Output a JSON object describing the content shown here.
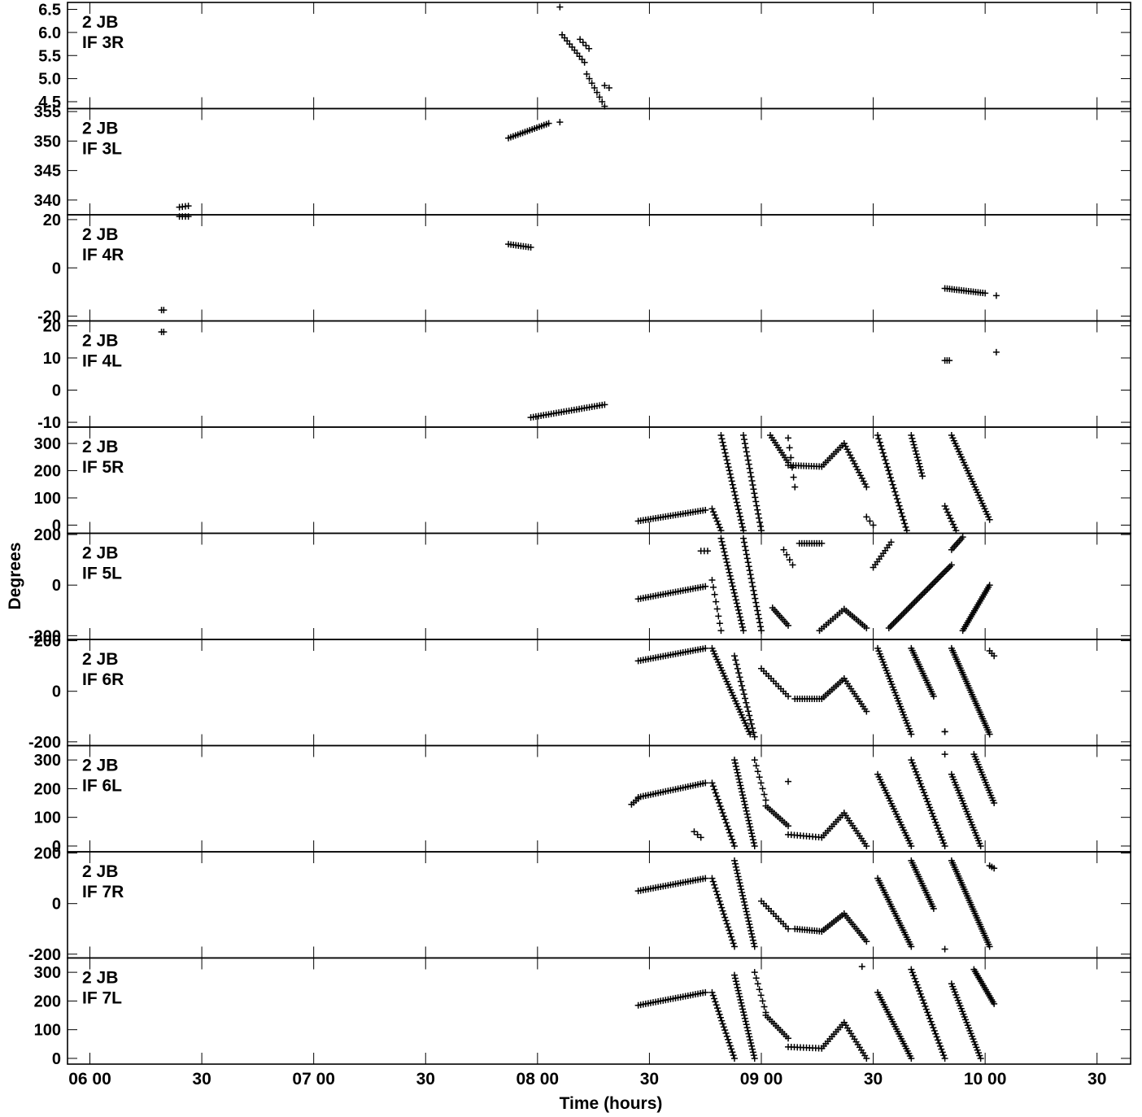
{
  "chart_data": {
    "type": "scatter",
    "marker": "+",
    "marker_color": "#000000",
    "xlabel": "Time (hours)",
    "ylabel": "Degrees",
    "xlim": [
      5.9,
      10.65
    ],
    "x_ticks": [
      {
        "value": 6.0,
        "label": "06 00"
      },
      {
        "value": 6.5,
        "label": "30"
      },
      {
        "value": 7.0,
        "label": "07 00"
      },
      {
        "value": 7.5,
        "label": "30"
      },
      {
        "value": 8.0,
        "label": "08 00"
      },
      {
        "value": 8.5,
        "label": "30"
      },
      {
        "value": 9.0,
        "label": "09 00"
      },
      {
        "value": 9.5,
        "label": "30"
      },
      {
        "value": 10.0,
        "label": "10 00"
      },
      {
        "value": 10.5,
        "label": "30"
      }
    ],
    "panels": [
      {
        "baseline": "2 JB",
        "label": "IF 3R",
        "ylim": [
          4.35,
          6.65
        ],
        "yticks": [
          {
            "v": 6.5,
            "t": "6.5"
          },
          {
            "v": 6.0,
            "t": "6.0"
          },
          {
            "v": 5.5,
            "t": "5.5"
          },
          {
            "v": 5.0,
            "t": "5.0"
          },
          {
            "v": 4.5,
            "t": "4.5"
          }
        ],
        "segments": [
          [
            8.1,
            6.55,
            8.1,
            6.55,
            1
          ],
          [
            8.11,
            5.95,
            8.21,
            5.35,
            10
          ],
          [
            8.19,
            5.85,
            8.23,
            5.65,
            4
          ],
          [
            8.22,
            5.1,
            8.3,
            4.4,
            8
          ],
          [
            8.3,
            4.85,
            8.32,
            4.8,
            2
          ]
        ]
      },
      {
        "baseline": "2 JB",
        "label": "IF 3L",
        "ylim": [
          337.5,
          355.5
        ],
        "yticks": [
          {
            "v": 355,
            "t": "355"
          },
          {
            "v": 350,
            "t": "350"
          },
          {
            "v": 345,
            "t": "345"
          },
          {
            "v": 340,
            "t": "340"
          }
        ],
        "segments": [
          [
            6.4,
            338.8,
            6.44,
            339.0,
            4
          ],
          [
            7.87,
            350.5,
            8.05,
            353.0,
            18
          ],
          [
            8.1,
            353.2,
            8.1,
            353.2,
            1
          ]
        ]
      },
      {
        "baseline": "2 JB",
        "label": "IF 4R",
        "ylim": [
          -22,
          22
        ],
        "yticks": [
          {
            "v": 20,
            "t": "20"
          },
          {
            "v": 0,
            "t": "0"
          },
          {
            "v": -20,
            "t": "-20"
          }
        ],
        "segments": [
          [
            6.4,
            21.3,
            6.44,
            21.3,
            4
          ],
          [
            6.32,
            -17.5,
            6.33,
            -17.5,
            2
          ],
          [
            7.87,
            9.8,
            7.97,
            8.5,
            10
          ],
          [
            9.82,
            -8.5,
            10.0,
            -10.5,
            18
          ],
          [
            10.05,
            -11.5,
            10.05,
            -11.5,
            1
          ]
        ]
      },
      {
        "baseline": "2 JB",
        "label": "IF 4L",
        "ylim": [
          -11.5,
          21.5
        ],
        "yticks": [
          {
            "v": 20,
            "t": "20"
          },
          {
            "v": 10,
            "t": "10"
          },
          {
            "v": 0,
            "t": "0"
          },
          {
            "v": -10,
            "t": "-10"
          }
        ],
        "segments": [
          [
            6.32,
            18.1,
            6.33,
            18.1,
            2
          ],
          [
            7.97,
            -8.5,
            8.3,
            -4.5,
            30
          ],
          [
            9.82,
            9.2,
            9.84,
            9.2,
            3
          ],
          [
            10.05,
            11.8,
            10.05,
            11.8,
            1
          ]
        ]
      },
      {
        "baseline": "2 JB",
        "label": "IF 5R",
        "ylim": [
          -30,
          360
        ],
        "yticks": [
          {
            "v": 300,
            "t": "300"
          },
          {
            "v": 200,
            "t": "200"
          },
          {
            "v": 100,
            "t": "100"
          },
          {
            "v": 0,
            "t": "0"
          }
        ],
        "segments": [
          [
            8.45,
            15,
            8.75,
            55,
            28
          ],
          [
            8.78,
            60,
            8.82,
            -20,
            8
          ],
          [
            8.82,
            330,
            8.92,
            -20,
            28
          ],
          [
            8.92,
            330,
            9.0,
            -20,
            24
          ],
          [
            9.04,
            330,
            9.12,
            230,
            12
          ],
          [
            9.12,
            220,
            9.27,
            215,
            14
          ],
          [
            9.27,
            215,
            9.37,
            300,
            12
          ],
          [
            9.37,
            300,
            9.47,
            140,
            16
          ],
          [
            9.52,
            330,
            9.65,
            -20,
            28
          ],
          [
            9.67,
            330,
            9.72,
            180,
            14
          ],
          [
            9.82,
            70,
            9.87,
            -20,
            9
          ],
          [
            9.85,
            330,
            10.02,
            20,
            32
          ],
          [
            9.12,
            320,
            9.15,
            140,
            6
          ],
          [
            9.47,
            30,
            9.5,
            0,
            3
          ]
        ]
      },
      {
        "baseline": "2 JB",
        "label": "IF 5L",
        "ylim": [
          -215,
          205
        ],
        "yticks": [
          {
            "v": 200,
            "t": "200"
          },
          {
            "v": 0,
            "t": "0"
          },
          {
            "v": -200,
            "t": "-200"
          }
        ],
        "segments": [
          [
            8.45,
            -55,
            8.75,
            -5,
            28
          ],
          [
            8.73,
            135,
            8.76,
            135,
            3
          ],
          [
            8.78,
            20,
            8.82,
            -180,
            8
          ],
          [
            8.82,
            185,
            8.92,
            -180,
            28
          ],
          [
            8.92,
            185,
            9.0,
            -180,
            24
          ],
          [
            9.05,
            -90,
            9.12,
            -160,
            10
          ],
          [
            9.1,
            140,
            9.14,
            80,
            4
          ],
          [
            9.17,
            165,
            9.27,
            165,
            10
          ],
          [
            9.26,
            -180,
            9.37,
            -95,
            12
          ],
          [
            9.37,
            -95,
            9.47,
            -170,
            12
          ],
          [
            9.5,
            70,
            9.58,
            170,
            10
          ],
          [
            9.57,
            -170,
            9.85,
            80,
            40
          ],
          [
            9.85,
            140,
            9.9,
            190,
            8
          ],
          [
            9.9,
            -180,
            10.02,
            0,
            24
          ]
        ]
      },
      {
        "baseline": "2 JB",
        "label": "IF 6R",
        "ylim": [
          -215,
          205
        ],
        "yticks": [
          {
            "v": 200,
            "t": "200"
          },
          {
            "v": 0,
            "t": "0"
          },
          {
            "v": -200,
            "t": "-200"
          }
        ],
        "segments": [
          [
            8.45,
            120,
            8.75,
            170,
            28
          ],
          [
            8.78,
            170,
            8.95,
            -170,
            32
          ],
          [
            8.88,
            140,
            8.97,
            -180,
            20
          ],
          [
            9.0,
            90,
            9.12,
            -20,
            12
          ],
          [
            9.15,
            -30,
            9.27,
            -30,
            12
          ],
          [
            9.27,
            -30,
            9.37,
            50,
            12
          ],
          [
            9.37,
            50,
            9.47,
            -80,
            14
          ],
          [
            9.52,
            170,
            9.67,
            -170,
            32
          ],
          [
            9.67,
            170,
            9.77,
            -20,
            22
          ],
          [
            9.82,
            -160,
            9.82,
            -160,
            2
          ],
          [
            9.85,
            170,
            10.02,
            -170,
            40
          ],
          [
            10.02,
            160,
            10.04,
            140,
            3
          ]
        ]
      },
      {
        "baseline": "2 JB",
        "label": "IF 6L",
        "ylim": [
          -20,
          350
        ],
        "yticks": [
          {
            "v": 300,
            "t": "300"
          },
          {
            "v": 200,
            "t": "200"
          },
          {
            "v": 100,
            "t": "100"
          },
          {
            "v": 0,
            "t": "0"
          }
        ],
        "segments": [
          [
            8.42,
            145,
            8.45,
            165,
            4
          ],
          [
            8.45,
            170,
            8.75,
            220,
            28
          ],
          [
            8.7,
            50,
            8.73,
            30,
            3
          ],
          [
            8.78,
            220,
            8.88,
            0,
            20
          ],
          [
            8.88,
            300,
            8.97,
            0,
            28
          ],
          [
            8.97,
            300,
            9.02,
            160,
            8
          ],
          [
            9.02,
            140,
            9.12,
            70,
            12
          ],
          [
            9.12,
            40,
            9.27,
            30,
            12
          ],
          [
            9.27,
            30,
            9.37,
            115,
            12
          ],
          [
            9.37,
            115,
            9.47,
            0,
            14
          ],
          [
            9.52,
            250,
            9.67,
            0,
            28
          ],
          [
            9.67,
            300,
            9.82,
            0,
            30
          ],
          [
            9.82,
            320,
            9.82,
            320,
            1
          ],
          [
            9.85,
            250,
            9.98,
            0,
            28
          ],
          [
            9.95,
            320,
            10.04,
            150,
            20
          ],
          [
            9.12,
            225,
            9.12,
            225,
            1
          ]
        ]
      },
      {
        "baseline": "2 JB",
        "label": "IF 7R",
        "ylim": [
          -215,
          205
        ],
        "yticks": [
          {
            "v": 200,
            "t": "200"
          },
          {
            "v": 0,
            "t": "0"
          },
          {
            "v": -200,
            "t": "-200"
          }
        ],
        "segments": [
          [
            8.45,
            50,
            8.75,
            100,
            28
          ],
          [
            8.78,
            100,
            8.88,
            -170,
            22
          ],
          [
            8.88,
            170,
            8.97,
            -170,
            28
          ],
          [
            9.0,
            10,
            9.12,
            -100,
            12
          ],
          [
            9.15,
            -100,
            9.27,
            -110,
            12
          ],
          [
            9.27,
            -110,
            9.37,
            -40,
            12
          ],
          [
            9.37,
            -40,
            9.47,
            -150,
            14
          ],
          [
            9.52,
            100,
            9.67,
            -170,
            30
          ],
          [
            9.67,
            170,
            9.77,
            -20,
            22
          ],
          [
            9.82,
            -180,
            9.82,
            -180,
            1
          ],
          [
            9.85,
            170,
            10.02,
            -170,
            40
          ],
          [
            10.02,
            150,
            10.04,
            140,
            3
          ]
        ]
      },
      {
        "baseline": "2 JB",
        "label": "IF 7L",
        "ylim": [
          -20,
          350
        ],
        "yticks": [
          {
            "v": 300,
            "t": "300"
          },
          {
            "v": 200,
            "t": "200"
          },
          {
            "v": 100,
            "t": "100"
          },
          {
            "v": 0,
            "t": "0"
          }
        ],
        "segments": [
          [
            8.45,
            185,
            8.75,
            230,
            28
          ],
          [
            8.78,
            230,
            8.88,
            0,
            22
          ],
          [
            8.88,
            290,
            8.97,
            0,
            28
          ],
          [
            8.97,
            300,
            9.02,
            160,
            8
          ],
          [
            9.02,
            150,
            9.12,
            70,
            12
          ],
          [
            9.12,
            40,
            9.27,
            35,
            12
          ],
          [
            9.27,
            35,
            9.37,
            125,
            12
          ],
          [
            9.37,
            125,
            9.47,
            0,
            14
          ],
          [
            9.52,
            230,
            9.67,
            0,
            28
          ],
          [
            9.67,
            310,
            9.82,
            0,
            30
          ],
          [
            9.85,
            260,
            9.98,
            0,
            28
          ],
          [
            9.95,
            310,
            10.04,
            190,
            18
          ],
          [
            9.45,
            320,
            9.45,
            320,
            1
          ]
        ]
      }
    ]
  }
}
